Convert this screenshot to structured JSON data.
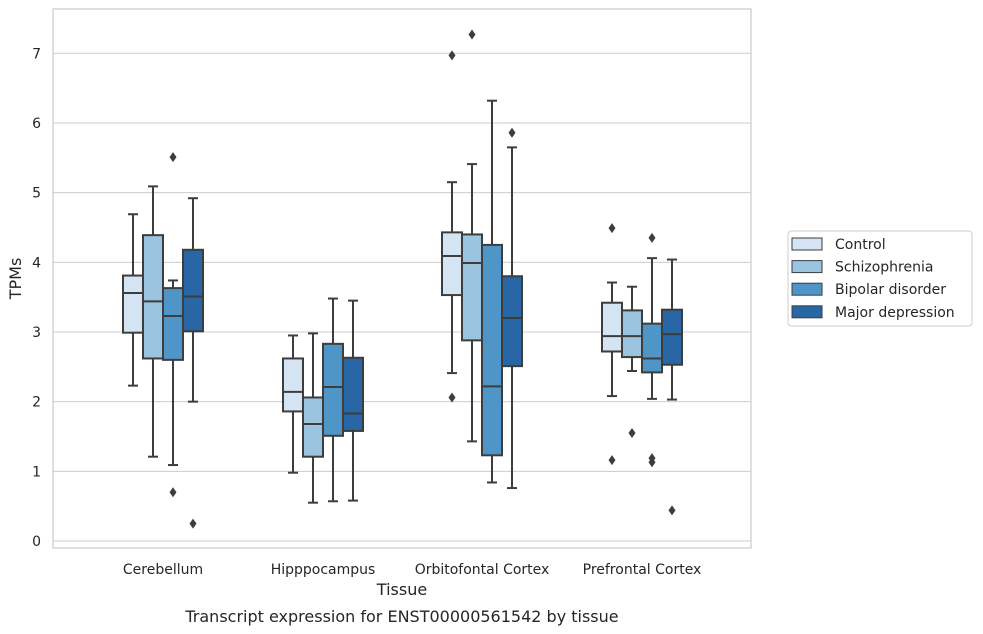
{
  "chart_data": {
    "type": "box",
    "xlabel": "Tissue",
    "ylabel": "TPMs",
    "caption": "Transcript expression for ENST00000561542 by tissue",
    "ylim": [
      -0.1,
      7.6
    ],
    "yticks": [
      0,
      1,
      2,
      3,
      4,
      5,
      6,
      7
    ],
    "grid": "horizontal",
    "legend_position": "right",
    "categories": [
      "Cerebellum",
      "Hipppocampus",
      "Orbitofontal Cortex",
      "Prefrontal Cortex"
    ],
    "series": [
      {
        "name": "Control",
        "color": "#d4e4f2",
        "boxes": [
          {
            "whisker_low": 2.23,
            "q1": 2.99,
            "median": 3.56,
            "q3": 3.81,
            "whisker_high": 4.69,
            "outliers": []
          },
          {
            "whisker_low": 0.98,
            "q1": 1.86,
            "median": 2.14,
            "q3": 2.62,
            "whisker_high": 2.95,
            "outliers": []
          },
          {
            "whisker_low": 2.41,
            "q1": 3.53,
            "median": 4.09,
            "q3": 4.43,
            "whisker_high": 5.15,
            "outliers": [
              6.97,
              2.06
            ]
          },
          {
            "whisker_low": 2.08,
            "q1": 2.72,
            "median": 2.94,
            "q3": 3.42,
            "whisker_high": 3.71,
            "outliers": [
              4.49,
              1.16
            ]
          }
        ]
      },
      {
        "name": "Schizophrenia",
        "color": "#9ac4e0",
        "boxes": [
          {
            "whisker_low": 1.21,
            "q1": 2.62,
            "median": 3.44,
            "q3": 4.39,
            "whisker_high": 5.09,
            "outliers": []
          },
          {
            "whisker_low": 0.55,
            "q1": 1.21,
            "median": 1.68,
            "q3": 2.06,
            "whisker_high": 2.98,
            "outliers": []
          },
          {
            "whisker_low": 1.43,
            "q1": 2.88,
            "median": 3.99,
            "q3": 4.4,
            "whisker_high": 5.41,
            "outliers": [
              7.27
            ]
          },
          {
            "whisker_low": 2.44,
            "q1": 2.64,
            "median": 2.94,
            "q3": 3.31,
            "whisker_high": 3.65,
            "outliers": [
              1.55
            ]
          }
        ]
      },
      {
        "name": "Bipolar disorder",
        "color": "#5095c7",
        "boxes": [
          {
            "whisker_low": 1.09,
            "q1": 2.6,
            "median": 3.23,
            "q3": 3.63,
            "whisker_high": 3.74,
            "outliers": [
              5.51,
              0.7
            ]
          },
          {
            "whisker_low": 0.57,
            "q1": 1.51,
            "median": 2.21,
            "q3": 2.83,
            "whisker_high": 3.48,
            "outliers": []
          },
          {
            "whisker_low": 0.84,
            "q1": 1.23,
            "median": 2.22,
            "q3": 4.25,
            "whisker_high": 6.32,
            "outliers": []
          },
          {
            "whisker_low": 2.04,
            "q1": 2.42,
            "median": 2.62,
            "q3": 3.12,
            "whisker_high": 4.06,
            "outliers": [
              4.35,
              1.19,
              1.13
            ]
          }
        ]
      },
      {
        "name": "Major depression",
        "color": "#2866a6",
        "boxes": [
          {
            "whisker_low": 2.0,
            "q1": 3.01,
            "median": 3.51,
            "q3": 4.18,
            "whisker_high": 4.92,
            "outliers": [
              0.25
            ]
          },
          {
            "whisker_low": 0.58,
            "q1": 1.58,
            "median": 1.83,
            "q3": 2.63,
            "whisker_high": 3.45,
            "outliers": []
          },
          {
            "whisker_low": 0.76,
            "q1": 2.51,
            "median": 3.2,
            "q3": 3.8,
            "whisker_high": 5.65,
            "outliers": [
              5.86
            ]
          },
          {
            "whisker_low": 2.03,
            "q1": 2.53,
            "median": 2.97,
            "q3": 3.32,
            "whisker_high": 4.04,
            "outliers": [
              0.44
            ]
          }
        ]
      }
    ]
  }
}
